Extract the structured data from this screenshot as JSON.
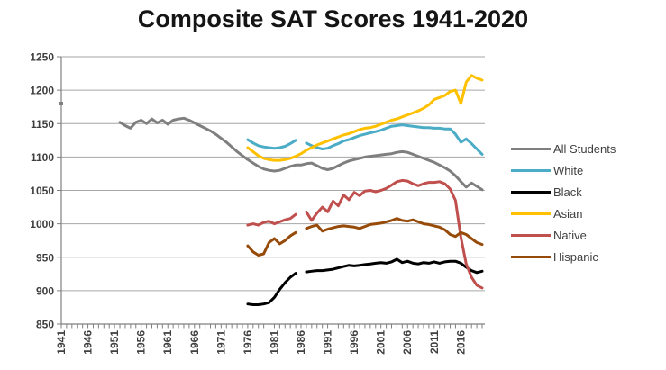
{
  "chart_data": {
    "type": "line",
    "title": "Composite SAT Scores 1941-2020",
    "xlabel": "",
    "ylabel": "",
    "x_range": [
      1941,
      2020
    ],
    "ylim": [
      850,
      1250
    ],
    "y_ticks": [
      1250,
      1200,
      1150,
      1100,
      1050,
      1000,
      950,
      900,
      850
    ],
    "x_tick_labels": [
      1941,
      1946,
      1951,
      1956,
      1961,
      1966,
      1971,
      1976,
      1981,
      1986,
      1991,
      1996,
      2001,
      2006,
      2011,
      2016
    ],
    "grid": "horizontal",
    "legend_position": "right",
    "colors": {
      "grid": "#a6a6a6",
      "axis": "#808080",
      "tick": "#808080",
      "text": "#3f3f3f"
    },
    "series": [
      {
        "name": "All Students",
        "color": "#7f7f7f",
        "points": [
          [
            1941,
            1180
          ],
          [
            1952,
            1152
          ],
          [
            1953,
            1147
          ],
          [
            1954,
            1143
          ],
          [
            1955,
            1152
          ],
          [
            1956,
            1155
          ],
          [
            1957,
            1150
          ],
          [
            1958,
            1157
          ],
          [
            1959,
            1151
          ],
          [
            1960,
            1155
          ],
          [
            1961,
            1149
          ],
          [
            1962,
            1155
          ],
          [
            1963,
            1157
          ],
          [
            1964,
            1158
          ],
          [
            1965,
            1155
          ],
          [
            1966,
            1151
          ],
          [
            1967,
            1147
          ],
          [
            1968,
            1143
          ],
          [
            1969,
            1139
          ],
          [
            1970,
            1134
          ],
          [
            1971,
            1128
          ],
          [
            1972,
            1122
          ],
          [
            1973,
            1115
          ],
          [
            1974,
            1108
          ],
          [
            1975,
            1102
          ],
          [
            1976,
            1096
          ],
          [
            1977,
            1091
          ],
          [
            1978,
            1086
          ],
          [
            1979,
            1082
          ],
          [
            1980,
            1080
          ],
          [
            1981,
            1079
          ],
          [
            1982,
            1080
          ],
          [
            1983,
            1083
          ],
          [
            1984,
            1086
          ],
          [
            1985,
            1088
          ],
          [
            1986,
            1088
          ],
          [
            1987,
            1090
          ],
          [
            1988,
            1091
          ],
          [
            1989,
            1087
          ],
          [
            1990,
            1083
          ],
          [
            1991,
            1081
          ],
          [
            1992,
            1083
          ],
          [
            1993,
            1087
          ],
          [
            1994,
            1091
          ],
          [
            1995,
            1094
          ],
          [
            1996,
            1096
          ],
          [
            1997,
            1098
          ],
          [
            1998,
            1100
          ],
          [
            1999,
            1101
          ],
          [
            2000,
            1102
          ],
          [
            2001,
            1103
          ],
          [
            2002,
            1104
          ],
          [
            2003,
            1105
          ],
          [
            2004,
            1107
          ],
          [
            2005,
            1108
          ],
          [
            2006,
            1107
          ],
          [
            2007,
            1104
          ],
          [
            2008,
            1101
          ],
          [
            2009,
            1098
          ],
          [
            2010,
            1095
          ],
          [
            2011,
            1092
          ],
          [
            2012,
            1088
          ],
          [
            2013,
            1084
          ],
          [
            2014,
            1079
          ],
          [
            2015,
            1072
          ],
          [
            2016,
            1063
          ],
          [
            2017,
            1055
          ],
          [
            2018,
            1061
          ],
          [
            2019,
            1056
          ],
          [
            2020,
            1051
          ]
        ]
      },
      {
        "name": "White",
        "color": "#4bacc6",
        "points": [
          [
            1976,
            1126
          ],
          [
            1977,
            1121
          ],
          [
            1978,
            1117
          ],
          [
            1979,
            1115
          ],
          [
            1980,
            1114
          ],
          [
            1981,
            1113
          ],
          [
            1982,
            1114
          ],
          [
            1983,
            1116
          ],
          [
            1984,
            1120
          ],
          [
            1985,
            1125
          ],
          [
            1987,
            1121
          ],
          [
            1988,
            1117
          ],
          [
            1989,
            1114
          ],
          [
            1990,
            1112
          ],
          [
            1991,
            1113
          ],
          [
            1992,
            1117
          ],
          [
            1993,
            1120
          ],
          [
            1994,
            1124
          ],
          [
            1995,
            1126
          ],
          [
            1996,
            1129
          ],
          [
            1997,
            1132
          ],
          [
            1998,
            1134
          ],
          [
            1999,
            1136
          ],
          [
            2000,
            1138
          ],
          [
            2001,
            1140
          ],
          [
            2002,
            1143
          ],
          [
            2003,
            1146
          ],
          [
            2004,
            1147
          ],
          [
            2005,
            1148
          ],
          [
            2006,
            1147
          ],
          [
            2007,
            1146
          ],
          [
            2008,
            1145
          ],
          [
            2009,
            1144
          ],
          [
            2010,
            1144
          ],
          [
            2011,
            1143
          ],
          [
            2012,
            1143
          ],
          [
            2013,
            1142
          ],
          [
            2014,
            1142
          ],
          [
            2015,
            1134
          ],
          [
            2016,
            1122
          ],
          [
            2017,
            1127
          ],
          [
            2018,
            1120
          ],
          [
            2019,
            1112
          ],
          [
            2020,
            1104
          ]
        ]
      },
      {
        "name": "Black",
        "color": "#000000",
        "points": [
          [
            1976,
            880
          ],
          [
            1977,
            879
          ],
          [
            1978,
            879
          ],
          [
            1979,
            880
          ],
          [
            1980,
            882
          ],
          [
            1981,
            890
          ],
          [
            1982,
            902
          ],
          [
            1983,
            912
          ],
          [
            1984,
            920
          ],
          [
            1985,
            926
          ],
          [
            1987,
            928
          ],
          [
            1988,
            929
          ],
          [
            1989,
            930
          ],
          [
            1990,
            930
          ],
          [
            1991,
            931
          ],
          [
            1992,
            932
          ],
          [
            1993,
            934
          ],
          [
            1994,
            936
          ],
          [
            1995,
            938
          ],
          [
            1996,
            937
          ],
          [
            1997,
            938
          ],
          [
            1998,
            939
          ],
          [
            1999,
            940
          ],
          [
            2000,
            941
          ],
          [
            2001,
            942
          ],
          [
            2002,
            941
          ],
          [
            2003,
            943
          ],
          [
            2004,
            947
          ],
          [
            2005,
            942
          ],
          [
            2006,
            944
          ],
          [
            2007,
            941
          ],
          [
            2008,
            940
          ],
          [
            2009,
            942
          ],
          [
            2010,
            941
          ],
          [
            2011,
            943
          ],
          [
            2012,
            941
          ],
          [
            2013,
            943
          ],
          [
            2014,
            944
          ],
          [
            2015,
            944
          ],
          [
            2016,
            941
          ],
          [
            2017,
            935
          ],
          [
            2018,
            930
          ],
          [
            2019,
            927
          ],
          [
            2020,
            929
          ]
        ]
      },
      {
        "name": "Asian",
        "color": "#ffc000",
        "points": [
          [
            1976,
            1114
          ],
          [
            1977,
            1108
          ],
          [
            1978,
            1102
          ],
          [
            1979,
            1098
          ],
          [
            1980,
            1096
          ],
          [
            1981,
            1095
          ],
          [
            1982,
            1095
          ],
          [
            1983,
            1096
          ],
          [
            1984,
            1098
          ],
          [
            1985,
            1101
          ],
          [
            1986,
            1105
          ],
          [
            1987,
            1110
          ],
          [
            1988,
            1114
          ],
          [
            1989,
            1118
          ],
          [
            1990,
            1121
          ],
          [
            1991,
            1124
          ],
          [
            1992,
            1127
          ],
          [
            1993,
            1130
          ],
          [
            1994,
            1133
          ],
          [
            1995,
            1135
          ],
          [
            1996,
            1138
          ],
          [
            1997,
            1141
          ],
          [
            1998,
            1143
          ],
          [
            1999,
            1144
          ],
          [
            2000,
            1146
          ],
          [
            2001,
            1149
          ],
          [
            2002,
            1152
          ],
          [
            2003,
            1155
          ],
          [
            2004,
            1157
          ],
          [
            2005,
            1160
          ],
          [
            2006,
            1163
          ],
          [
            2007,
            1166
          ],
          [
            2008,
            1169
          ],
          [
            2009,
            1173
          ],
          [
            2010,
            1178
          ],
          [
            2011,
            1186
          ],
          [
            2012,
            1189
          ],
          [
            2013,
            1192
          ],
          [
            2014,
            1198
          ],
          [
            2015,
            1200
          ],
          [
            2016,
            1180
          ],
          [
            2017,
            1212
          ],
          [
            2018,
            1222
          ],
          [
            2019,
            1218
          ],
          [
            2020,
            1215
          ]
        ]
      },
      {
        "name": "Native",
        "color": "#c0504d",
        "points": [
          [
            1976,
            998
          ],
          [
            1977,
            1000
          ],
          [
            1978,
            998
          ],
          [
            1979,
            1002
          ],
          [
            1980,
            1004
          ],
          [
            1981,
            1000
          ],
          [
            1982,
            1003
          ],
          [
            1983,
            1006
          ],
          [
            1984,
            1008
          ],
          [
            1985,
            1014
          ],
          [
            1987,
            1018
          ],
          [
            1988,
            1005
          ],
          [
            1989,
            1016
          ],
          [
            1990,
            1025
          ],
          [
            1991,
            1018
          ],
          [
            1992,
            1034
          ],
          [
            1993,
            1027
          ],
          [
            1994,
            1043
          ],
          [
            1995,
            1036
          ],
          [
            1996,
            1047
          ],
          [
            1997,
            1042
          ],
          [
            1998,
            1049
          ],
          [
            1999,
            1050
          ],
          [
            2000,
            1048
          ],
          [
            2001,
            1050
          ],
          [
            2002,
            1053
          ],
          [
            2003,
            1058
          ],
          [
            2004,
            1063
          ],
          [
            2005,
            1065
          ],
          [
            2006,
            1064
          ],
          [
            2007,
            1060
          ],
          [
            2008,
            1057
          ],
          [
            2009,
            1060
          ],
          [
            2010,
            1062
          ],
          [
            2011,
            1062
          ],
          [
            2012,
            1063
          ],
          [
            2013,
            1060
          ],
          [
            2014,
            1052
          ],
          [
            2015,
            1035
          ],
          [
            2016,
            980
          ],
          [
            2017,
            940
          ],
          [
            2018,
            920
          ],
          [
            2019,
            908
          ],
          [
            2020,
            904
          ]
        ]
      },
      {
        "name": "Hispanic",
        "color": "#964b0a",
        "points": [
          [
            1976,
            967
          ],
          [
            1977,
            958
          ],
          [
            1978,
            953
          ],
          [
            1979,
            955
          ],
          [
            1980,
            972
          ],
          [
            1981,
            978
          ],
          [
            1982,
            970
          ],
          [
            1983,
            975
          ],
          [
            1984,
            982
          ],
          [
            1985,
            987
          ],
          [
            1987,
            993
          ],
          [
            1988,
            996
          ],
          [
            1989,
            998
          ],
          [
            1990,
            989
          ],
          [
            1991,
            992
          ],
          [
            1992,
            994
          ],
          [
            1993,
            996
          ],
          [
            1994,
            997
          ],
          [
            1995,
            996
          ],
          [
            1996,
            995
          ],
          [
            1997,
            993
          ],
          [
            1998,
            996
          ],
          [
            1999,
            999
          ],
          [
            2000,
            1000
          ],
          [
            2001,
            1001
          ],
          [
            2002,
            1003
          ],
          [
            2003,
            1005
          ],
          [
            2004,
            1008
          ],
          [
            2005,
            1005
          ],
          [
            2006,
            1004
          ],
          [
            2007,
            1006
          ],
          [
            2008,
            1003
          ],
          [
            2009,
            1000
          ],
          [
            2010,
            999
          ],
          [
            2011,
            997
          ],
          [
            2012,
            995
          ],
          [
            2013,
            991
          ],
          [
            2014,
            984
          ],
          [
            2015,
            981
          ],
          [
            2016,
            987
          ],
          [
            2017,
            984
          ],
          [
            2018,
            978
          ],
          [
            2019,
            972
          ],
          [
            2020,
            969
          ]
        ]
      }
    ],
    "legend": [
      "All Students",
      "White",
      "Black",
      "Asian",
      "Native",
      "Hispanic"
    ]
  }
}
